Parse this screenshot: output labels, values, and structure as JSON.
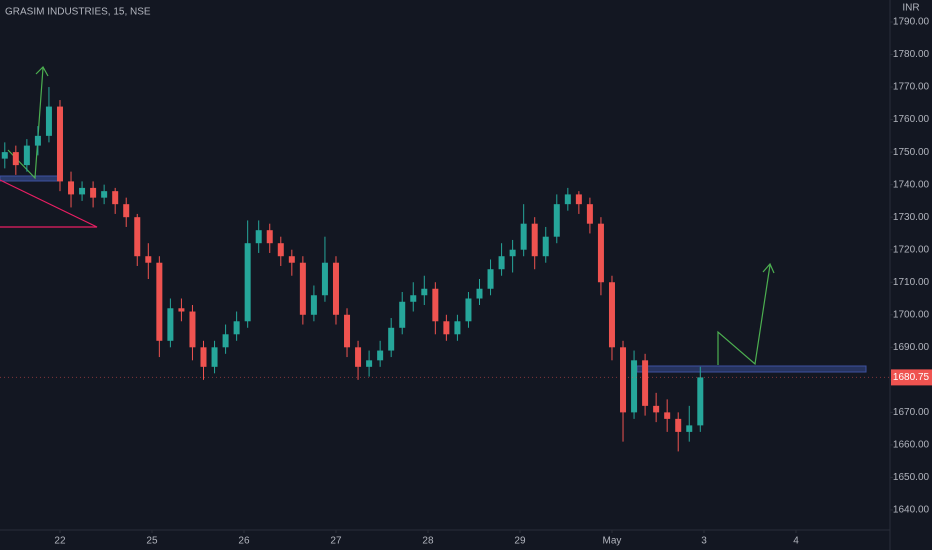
{
  "chart_data": {
    "type": "candlestick",
    "title": "GRASIM INDUSTRIES, 15, NSE",
    "currency": "INR",
    "last_price": 1680.75,
    "up_color": "#26a69a",
    "down_color": "#ef5350",
    "grid": false,
    "ylim": [
      1633.84,
      1796.76
    ],
    "yticks": [
      {
        "value": 1790,
        "label": "1790.00"
      },
      {
        "value": 1780,
        "label": "1780.00"
      },
      {
        "value": 1770,
        "label": "1770.00"
      },
      {
        "value": 1760,
        "label": "1760.00"
      },
      {
        "value": 1750,
        "label": "1750.00"
      },
      {
        "value": 1740,
        "label": "1740.00"
      },
      {
        "value": 1730,
        "label": "1730.00"
      },
      {
        "value": 1720,
        "label": "1720.00"
      },
      {
        "value": 1710,
        "label": "1710.00"
      },
      {
        "value": 1700,
        "label": "1700.00"
      },
      {
        "value": 1690,
        "label": "1690.00"
      },
      {
        "value": 1680,
        "label": "1680.00"
      },
      {
        "value": 1670,
        "label": "1670.00"
      },
      {
        "value": 1660,
        "label": "1660.00"
      },
      {
        "value": 1650,
        "label": "1650.00"
      },
      {
        "value": 1640,
        "label": "1640.00"
      }
    ],
    "xlim": [
      -0.652,
      9.022
    ],
    "xticks": [
      {
        "value": 0,
        "label": "22"
      },
      {
        "value": 1,
        "label": "25"
      },
      {
        "value": 2,
        "label": "26"
      },
      {
        "value": 3,
        "label": "27"
      },
      {
        "value": 4,
        "label": "28"
      },
      {
        "value": 5,
        "label": "29"
      },
      {
        "value": 6,
        "label": "May"
      },
      {
        "value": 7,
        "label": "3"
      },
      {
        "value": 8,
        "label": "4"
      }
    ],
    "series": [
      {
        "x": [
          -0.6,
          -0.48,
          -0.36,
          -0.24,
          -0.12,
          0,
          0.12,
          0.24,
          0.36,
          0.48,
          0.6,
          0.72,
          0.84,
          0.96,
          1.08,
          1.2,
          1.32,
          1.44,
          1.56,
          1.68,
          1.8,
          1.92,
          2.04,
          2.16,
          2.28,
          2.4,
          2.52,
          2.64,
          2.76,
          2.88,
          3,
          3.12,
          3.24,
          3.36,
          3.48,
          3.6,
          3.72,
          3.84,
          3.96,
          4.08,
          4.2,
          4.32,
          4.44,
          4.56,
          4.68,
          4.8,
          4.92,
          5.04,
          5.16,
          5.28,
          5.4,
          5.52,
          5.64,
          5.76,
          5.88,
          6,
          6.12,
          6.24,
          6.36,
          6.48,
          6.6,
          6.72,
          6.84,
          6.96
        ],
        "ohlc": [
          [
            1748,
            1753,
            1745,
            1750
          ],
          [
            1750,
            1752,
            1743,
            1746
          ],
          [
            1746,
            1754,
            1744,
            1752
          ],
          [
            1752,
            1758,
            1749,
            1755
          ],
          [
            1755,
            1770,
            1753,
            1764
          ],
          [
            1764,
            1766,
            1738,
            1741
          ],
          [
            1741,
            1744,
            1733,
            1737
          ],
          [
            1737,
            1741,
            1735,
            1739
          ],
          [
            1739,
            1741,
            1733,
            1736
          ],
          [
            1736,
            1740,
            1734,
            1738
          ],
          [
            1738,
            1739,
            1731,
            1734
          ],
          [
            1734,
            1736,
            1727,
            1730
          ],
          [
            1730,
            1731,
            1715,
            1718
          ],
          [
            1718,
            1722,
            1711,
            1716
          ],
          [
            1716,
            1718,
            1687,
            1692
          ],
          [
            1692,
            1705,
            1690,
            1702
          ],
          [
            1702,
            1705,
            1698,
            1701
          ],
          [
            1701,
            1703,
            1686,
            1690
          ],
          [
            1690,
            1692,
            1680,
            1684
          ],
          [
            1684,
            1692,
            1682,
            1690
          ],
          [
            1690,
            1697,
            1688,
            1694
          ],
          [
            1694,
            1701,
            1692,
            1698
          ],
          [
            1698,
            1729,
            1696,
            1722
          ],
          [
            1722,
            1729,
            1719,
            1726
          ],
          [
            1726,
            1728,
            1719,
            1722
          ],
          [
            1722,
            1724,
            1715,
            1718
          ],
          [
            1718,
            1720,
            1712,
            1716
          ],
          [
            1716,
            1718,
            1697,
            1700
          ],
          [
            1700,
            1709,
            1698,
            1706
          ],
          [
            1706,
            1724,
            1704,
            1716
          ],
          [
            1716,
            1718,
            1697,
            1700
          ],
          [
            1700,
            1702,
            1687,
            1690
          ],
          [
            1690,
            1692,
            1680,
            1684
          ],
          [
            1684,
            1689,
            1681,
            1686
          ],
          [
            1686,
            1692,
            1684,
            1689
          ],
          [
            1689,
            1699,
            1687,
            1696
          ],
          [
            1696,
            1707,
            1694,
            1704
          ],
          [
            1704,
            1710,
            1701,
            1706
          ],
          [
            1706,
            1712,
            1703,
            1708
          ],
          [
            1708,
            1710,
            1694,
            1698
          ],
          [
            1698,
            1700,
            1692,
            1694
          ],
          [
            1694,
            1700,
            1692,
            1698
          ],
          [
            1698,
            1707,
            1696,
            1705
          ],
          [
            1705,
            1711,
            1703,
            1708
          ],
          [
            1708,
            1717,
            1706,
            1714
          ],
          [
            1714,
            1722,
            1712,
            1718
          ],
          [
            1718,
            1723,
            1713,
            1720
          ],
          [
            1720,
            1734,
            1718,
            1728
          ],
          [
            1728,
            1730,
            1714,
            1718
          ],
          [
            1718,
            1727,
            1716,
            1724
          ],
          [
            1724,
            1737,
            1722,
            1734
          ],
          [
            1734,
            1739,
            1732,
            1737
          ],
          [
            1737,
            1738,
            1731,
            1734
          ],
          [
            1734,
            1736,
            1725,
            1728
          ],
          [
            1728,
            1730,
            1706,
            1710
          ],
          [
            1710,
            1712,
            1686,
            1690
          ],
          [
            1690,
            1692,
            1661,
            1670
          ],
          [
            1670,
            1689,
            1668,
            1686
          ],
          [
            1686,
            1688,
            1669,
            1672
          ],
          [
            1672,
            1676,
            1667,
            1670
          ],
          [
            1670,
            1674,
            1664,
            1668
          ],
          [
            1668,
            1670,
            1658,
            1664
          ],
          [
            1664,
            1672,
            1661,
            1666
          ],
          [
            1666,
            1684,
            1664,
            1680.75
          ]
        ]
      }
    ]
  }
}
